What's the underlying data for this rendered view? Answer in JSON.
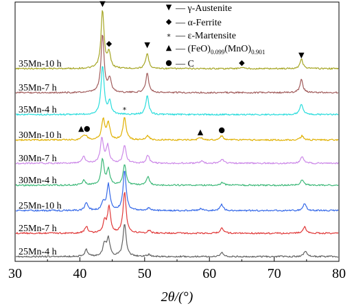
{
  "chart_data": {
    "type": "line",
    "xlabel": "2θ/(°)",
    "ylabel": "",
    "xlim": [
      30,
      80
    ],
    "x_ticks": [
      "30",
      "40",
      "50",
      "60",
      "70",
      "80"
    ],
    "legend": {
      "placement": "top-right",
      "entries": [
        {
          "symbol": "down-triangle",
          "text": "— γ-Austenite"
        },
        {
          "symbol": "diamond",
          "text": "— α-Ferrite"
        },
        {
          "symbol": "star",
          "text": "— ε-Martensite"
        },
        {
          "symbol": "up-triangle",
          "text": "— (FeO)",
          "sub1": "0.099",
          "mid": "(MnO)",
          "sub2": "0.901"
        },
        {
          "symbol": "circle",
          "text": "— C"
        }
      ]
    },
    "series": [
      {
        "name": "35Mn-10 h",
        "color": "#a5a522",
        "peaks": [
          {
            "x": 43.5,
            "h": 85
          },
          {
            "x": 44.5,
            "h": 22
          },
          {
            "x": 50.4,
            "h": 22
          },
          {
            "x": 65.0,
            "h": 2
          },
          {
            "x": 74.2,
            "h": 14
          }
        ]
      },
      {
        "name": "35Mn-7 h",
        "color": "#a05a5a",
        "peaks": [
          {
            "x": 43.5,
            "h": 85
          },
          {
            "x": 44.6,
            "h": 20
          },
          {
            "x": 50.4,
            "h": 28
          },
          {
            "x": 74.2,
            "h": 19
          }
        ]
      },
      {
        "name": "35Mn-4 h",
        "color": "#28dcdc",
        "peaks": [
          {
            "x": 43.5,
            "h": 72
          },
          {
            "x": 44.6,
            "h": 18
          },
          {
            "x": 50.4,
            "h": 27
          },
          {
            "x": 74.2,
            "h": 16
          }
        ]
      },
      {
        "name": "30Mn-10 h",
        "color": "#e0b000",
        "peaks": [
          {
            "x": 40.5,
            "h": 6
          },
          {
            "x": 41.0,
            "h": 4
          },
          {
            "x": 43.6,
            "h": 30
          },
          {
            "x": 44.4,
            "h": 24
          },
          {
            "x": 46.9,
            "h": 33
          },
          {
            "x": 50.5,
            "h": 6
          },
          {
            "x": 58.6,
            "h": 4
          },
          {
            "x": 61.9,
            "h": 6
          },
          {
            "x": 74.3,
            "h": 6
          }
        ]
      },
      {
        "name": "30Mn-7 h",
        "color": "#cc88e8",
        "peaks": [
          {
            "x": 40.6,
            "h": 10
          },
          {
            "x": 43.4,
            "h": 37
          },
          {
            "x": 44.3,
            "h": 25
          },
          {
            "x": 46.9,
            "h": 26
          },
          {
            "x": 50.5,
            "h": 12
          },
          {
            "x": 58.8,
            "h": 4
          },
          {
            "x": 62.0,
            "h": 6
          },
          {
            "x": 74.3,
            "h": 10
          }
        ]
      },
      {
        "name": "30Mn-4 h",
        "color": "#3cb878",
        "peaks": [
          {
            "x": 40.6,
            "h": 7
          },
          {
            "x": 43.5,
            "h": 37
          },
          {
            "x": 44.4,
            "h": 22
          },
          {
            "x": 46.9,
            "h": 30
          },
          {
            "x": 50.5,
            "h": 12
          },
          {
            "x": 62.0,
            "h": 4
          },
          {
            "x": 74.3,
            "h": 8
          }
        ]
      },
      {
        "name": "25Mn-10 h",
        "color": "#3468e8",
        "peaks": [
          {
            "x": 41.0,
            "h": 12
          },
          {
            "x": 43.6,
            "h": 12
          },
          {
            "x": 44.4,
            "h": 38
          },
          {
            "x": 46.9,
            "h": 58
          },
          {
            "x": 50.7,
            "h": 4
          },
          {
            "x": 58.7,
            "h": 3
          },
          {
            "x": 61.9,
            "h": 9
          },
          {
            "x": 74.7,
            "h": 10
          }
        ]
      },
      {
        "name": "25Mn-7 h",
        "color": "#e03838",
        "peaks": [
          {
            "x": 41.0,
            "h": 10
          },
          {
            "x": 43.8,
            "h": 16
          },
          {
            "x": 44.5,
            "h": 38
          },
          {
            "x": 46.9,
            "h": 60
          },
          {
            "x": 50.7,
            "h": 4
          },
          {
            "x": 61.9,
            "h": 8
          },
          {
            "x": 74.7,
            "h": 9
          }
        ]
      },
      {
        "name": "25Mn-4 h",
        "color": "#606060",
        "peaks": [
          {
            "x": 41.0,
            "h": 10
          },
          {
            "x": 43.8,
            "h": 18
          },
          {
            "x": 44.4,
            "h": 26
          },
          {
            "x": 46.9,
            "h": 48
          },
          {
            "x": 50.7,
            "h": 3
          },
          {
            "x": 61.9,
            "h": 6
          },
          {
            "x": 74.8,
            "h": 8
          }
        ]
      }
    ],
    "annotations": [
      {
        "symbol": "down-triangle",
        "x": 43.5,
        "series": "35Mn-10 h"
      },
      {
        "symbol": "diamond",
        "x": 44.5,
        "series": "35Mn-10 h"
      },
      {
        "symbol": "down-triangle",
        "x": 50.4,
        "series": "35Mn-10 h"
      },
      {
        "symbol": "diamond",
        "x": 65.0,
        "series": "35Mn-10 h"
      },
      {
        "symbol": "down-triangle",
        "x": 74.2,
        "series": "35Mn-10 h"
      },
      {
        "symbol": "star",
        "x": 46.9,
        "series": "30Mn-10 h"
      },
      {
        "symbol": "up-triangle",
        "x": 40.2,
        "series": "30Mn-10 h"
      },
      {
        "symbol": "circle",
        "x": 41.1,
        "series": "30Mn-10 h"
      },
      {
        "symbol": "up-triangle",
        "x": 58.6,
        "series": "30Mn-10 h"
      },
      {
        "symbol": "circle",
        "x": 61.9,
        "series": "30Mn-10 h"
      }
    ]
  }
}
